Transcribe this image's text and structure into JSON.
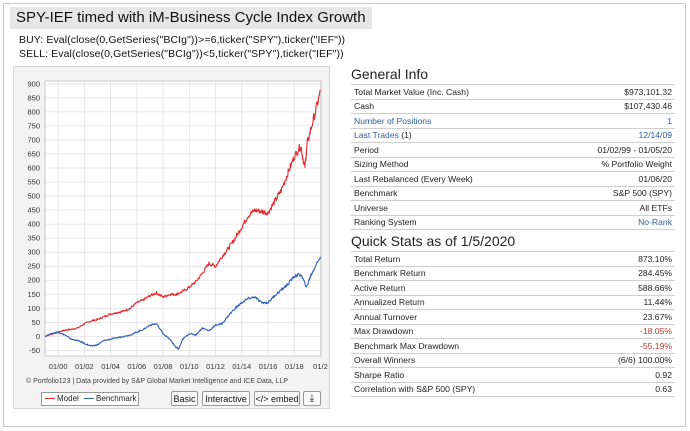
{
  "title": "SPY-IEF timed with iM-Business Cycle Index Growth",
  "rules": {
    "buy": "BUY: Eval(close(0,GetSeries(\"BCIg\"))>=6,ticker(\"SPY\"),ticker(\"IEF\"))",
    "sell": "SELL: Eval(close(0,GetSeries(\"BCIg\"))<5,ticker(\"SPY\"),ticker(\"IEF\"))"
  },
  "chart_data": {
    "type": "line",
    "x_tick_labels": [
      "01/00",
      "01/02",
      "01/04",
      "01/06",
      "01/08",
      "01/10",
      "01/12",
      "01/14",
      "01/16",
      "01/18",
      "01/2"
    ],
    "y_ticks": [
      -50,
      0,
      50,
      100,
      150,
      200,
      250,
      300,
      350,
      400,
      450,
      500,
      550,
      600,
      650,
      700,
      750,
      800,
      850,
      900
    ],
    "ylim": [
      -70,
      910
    ],
    "xlim": [
      1999.0,
      2020.04
    ],
    "grid": true,
    "legend_position": "bottom-left",
    "series": [
      {
        "name": "Model",
        "color": "#e8262b",
        "x": [
          1999.0,
          1999.5,
          2000.0,
          2000.5,
          2001.0,
          2001.5,
          2002.0,
          2002.5,
          2003.0,
          2003.5,
          2004.0,
          2004.5,
          2005.0,
          2005.5,
          2006.0,
          2006.5,
          2007.0,
          2007.5,
          2008.0,
          2008.5,
          2009.0,
          2009.5,
          2010.0,
          2010.5,
          2011.0,
          2011.5,
          2012.0,
          2012.5,
          2013.0,
          2013.5,
          2014.0,
          2014.5,
          2015.0,
          2015.5,
          2016.0,
          2016.5,
          2017.0,
          2017.5,
          2018.0,
          2018.5,
          2018.8,
          2019.0,
          2019.5,
          2020.0
        ],
        "values": [
          0,
          8,
          15,
          22,
          25,
          30,
          45,
          55,
          60,
          70,
          80,
          85,
          90,
          100,
          120,
          130,
          145,
          155,
          140,
          150,
          150,
          160,
          175,
          195,
          225,
          260,
          250,
          285,
          315,
          350,
          390,
          430,
          450,
          445,
          440,
          480,
          520,
          580,
          640,
          680,
          600,
          690,
          780,
          873
        ]
      },
      {
        "name": "Benchmark",
        "color": "#2e5fbd",
        "x": [
          1999.0,
          1999.5,
          2000.0,
          2000.5,
          2001.0,
          2001.5,
          2002.0,
          2002.5,
          2003.0,
          2003.5,
          2004.0,
          2004.5,
          2005.0,
          2005.5,
          2006.0,
          2006.5,
          2007.0,
          2007.5,
          2008.0,
          2008.5,
          2009.0,
          2009.2,
          2009.5,
          2010.0,
          2010.5,
          2011.0,
          2011.5,
          2012.0,
          2012.5,
          2013.0,
          2013.5,
          2014.0,
          2014.5,
          2015.0,
          2015.5,
          2016.0,
          2016.5,
          2017.0,
          2017.5,
          2018.0,
          2018.5,
          2018.95,
          2019.2,
          2019.5,
          2020.0
        ],
        "values": [
          0,
          10,
          15,
          5,
          -10,
          -15,
          -25,
          -35,
          -30,
          -15,
          -10,
          -5,
          0,
          5,
          15,
          25,
          40,
          45,
          10,
          -10,
          -40,
          -45,
          -10,
          10,
          5,
          30,
          20,
          40,
          45,
          75,
          100,
          120,
          135,
          140,
          120,
          120,
          145,
          165,
          185,
          215,
          220,
          175,
          210,
          240,
          284
        ]
      }
    ]
  },
  "chart_credit": "© Portfolio123 | Data provided by S&P Global Market Intelligence and ICE Data, LLP",
  "legend": {
    "model": "Model",
    "benchmark": "Benchmark"
  },
  "buttons": {
    "basic": "Basic",
    "interactive": "Interactive",
    "embed": "</> embed",
    "download": "⤓"
  },
  "general_info": {
    "title": "General Info",
    "rows": [
      {
        "label": "Total Market Value (Inc. Cash)",
        "value": "$973,101.32"
      },
      {
        "label": "Cash",
        "value": "$107,430.46"
      },
      {
        "label": "Number of Positions",
        "value": "1",
        "link": true
      },
      {
        "label": "Last Trades",
        "label_suffix": " (1)",
        "value": "12/14/09",
        "link": true
      },
      {
        "label": "Period",
        "value": "01/02/99 - 01/05/20"
      },
      {
        "label": "Sizing Method",
        "value": "% Portfolio Weight"
      },
      {
        "label": "Last Rebalanced (Every Week)",
        "value": "01/06/20"
      },
      {
        "label": "Benchmark",
        "value": "S&P 500 (SPY)"
      },
      {
        "label": "Universe",
        "value": "All ETFs"
      },
      {
        "label": "Ranking System",
        "value": "No-Rank",
        "value_link": true
      }
    ]
  },
  "quick_stats": {
    "title": "Quick Stats as of 1/5/2020",
    "rows": [
      {
        "label": "Total Return",
        "value": "873.10%"
      },
      {
        "label": "Benchmark Return",
        "value": "284.45%"
      },
      {
        "label": "Active Return",
        "value": "588.66%"
      },
      {
        "label": "Annualized Return",
        "value": "11.44%"
      },
      {
        "label": "Annual Turnover",
        "value": "23.67%"
      },
      {
        "label": "Max Drawdown",
        "value": "-18.05%",
        "negative": true
      },
      {
        "label": "Benchmark Max Drawdown",
        "value": "-55.19%",
        "negative": true
      },
      {
        "label": "Overall Winners",
        "value": "(6/6) 100.00%"
      },
      {
        "label": "Sharpe Ratio",
        "value": "0.92"
      },
      {
        "label": "Correlation with S&P 500 (SPY)",
        "value": "0.63"
      }
    ]
  }
}
